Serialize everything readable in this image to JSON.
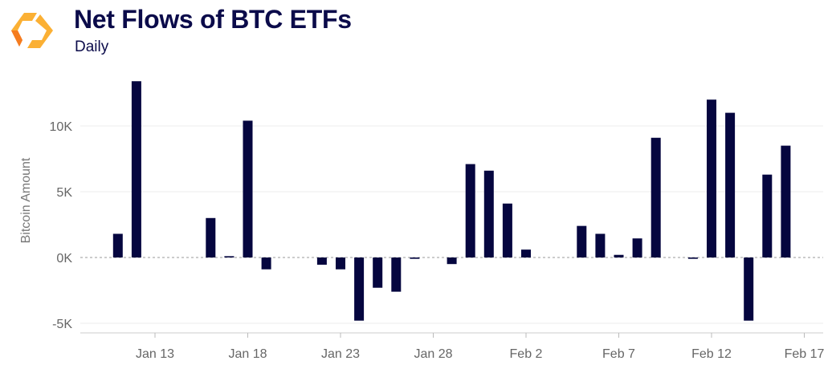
{
  "header": {
    "title": "Net Flows of BTC ETFs",
    "subtitle": "Daily"
  },
  "colors": {
    "bar": "#05063f",
    "logo_light": "#fbb034",
    "logo_dark": "#f57c1f"
  },
  "chart_data": {
    "type": "bar",
    "title": "Net Flows of BTC ETFs",
    "subtitle": "Daily",
    "xlabel": "",
    "ylabel": "Bitcoin Amount",
    "ylim": [
      -5500,
      14000
    ],
    "grid": true,
    "yticks": [
      {
        "value": 10000,
        "label": "10K"
      },
      {
        "value": 5000,
        "label": "5K"
      },
      {
        "value": 0,
        "label": "0K"
      },
      {
        "value": -5000,
        "label": "-5K"
      }
    ],
    "xticks": [
      {
        "day": 13,
        "label": "Jan 13"
      },
      {
        "day": 18,
        "label": "Jan 18"
      },
      {
        "day": 23,
        "label": "Jan 23"
      },
      {
        "day": 28,
        "label": "Jan 28"
      },
      {
        "day": 33,
        "label": "Feb 2"
      },
      {
        "day": 38,
        "label": "Feb 7"
      },
      {
        "day": 43,
        "label": "Feb 12"
      },
      {
        "day": 48,
        "label": "Feb 17"
      }
    ],
    "categories": [
      "Jan 11",
      "Jan 12",
      "Jan 16",
      "Jan 17",
      "Jan 18",
      "Jan 19",
      "Jan 22",
      "Jan 23",
      "Jan 24",
      "Jan 25",
      "Jan 26",
      "Jan 27",
      "Jan 29",
      "Jan 30",
      "Jan 31",
      "Feb 1",
      "Feb 2",
      "Feb 5",
      "Feb 6",
      "Feb 7",
      "Feb 8",
      "Feb 9",
      "Feb 11",
      "Feb 12",
      "Feb 13",
      "Feb 14",
      "Feb 15",
      "Feb 16"
    ],
    "days": [
      11,
      12,
      16,
      17,
      18,
      19,
      22,
      23,
      24,
      25,
      26,
      27,
      29,
      30,
      31,
      32,
      33,
      36,
      37,
      38,
      39,
      40,
      42,
      43,
      44,
      45,
      46,
      47
    ],
    "values": [
      1800,
      13400,
      3000,
      100,
      10400,
      -900,
      -550,
      -900,
      -4800,
      -2300,
      -2600,
      -100,
      -500,
      7100,
      6600,
      4100,
      600,
      2400,
      1800,
      200,
      1450,
      9100,
      -100,
      12000,
      11000,
      -4800,
      6300,
      8500
    ]
  }
}
